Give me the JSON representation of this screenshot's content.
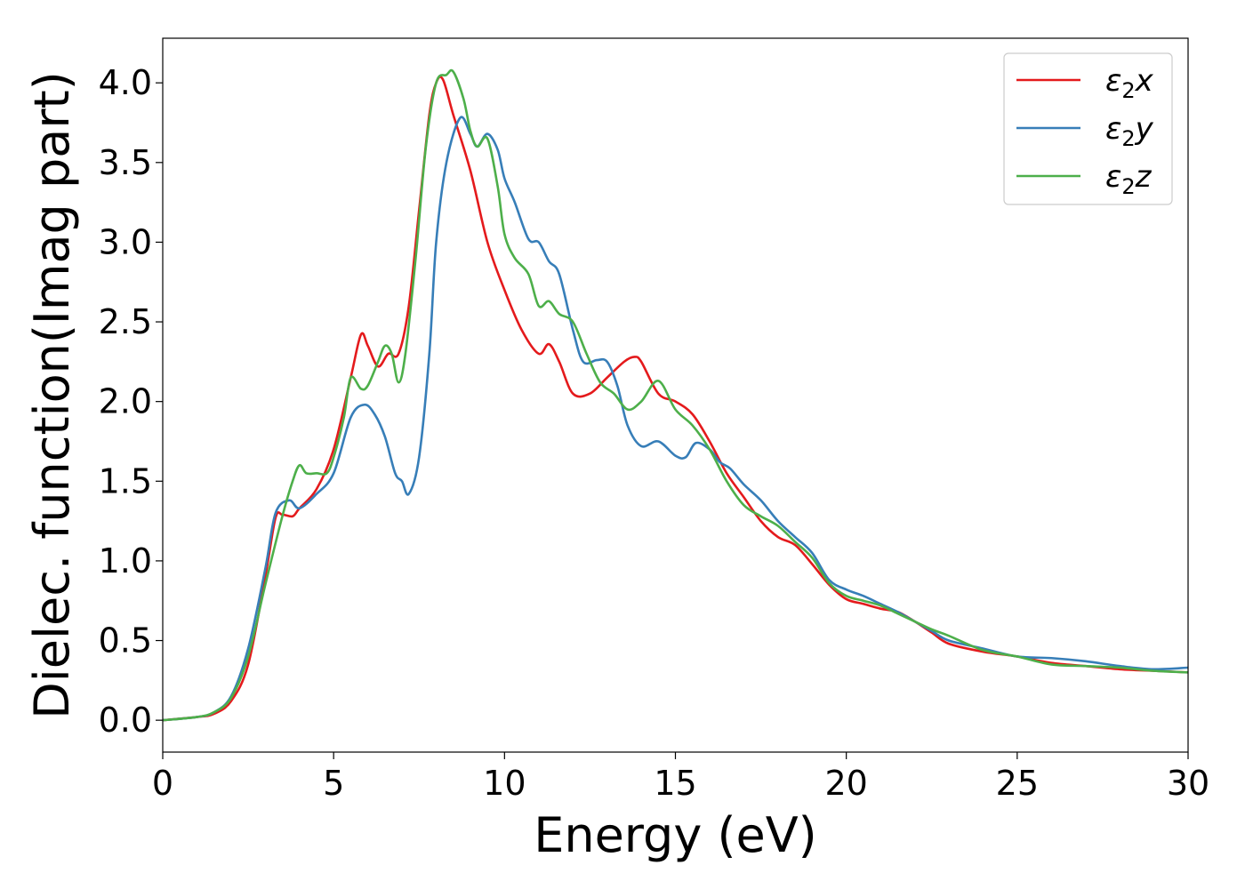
{
  "chart_data": {
    "type": "line",
    "title": "",
    "xlabel": "Energy (eV)",
    "ylabel": "Dielec. function(Imag part)",
    "xlim": [
      0,
      30
    ],
    "ylim": [
      -0.2,
      4.28
    ],
    "xticks": [
      0,
      5,
      10,
      15,
      20,
      25,
      30
    ],
    "yticks": [
      0.0,
      0.5,
      1.0,
      1.5,
      2.0,
      2.5,
      3.0,
      3.5,
      4.0
    ],
    "xtick_labels": [
      "0",
      "5",
      "10",
      "15",
      "20",
      "25",
      "30"
    ],
    "ytick_labels": [
      "0.0",
      "0.5",
      "1.0",
      "1.5",
      "2.0",
      "2.5",
      "3.0",
      "3.5",
      "4.0"
    ],
    "grid": false,
    "legend_position": "top-right",
    "series": [
      {
        "name": "ε2x",
        "legend_base": "ε",
        "legend_sub": "2",
        "legend_suffix": "x",
        "color": "#e41a1c",
        "x": [
          0,
          1,
          1.5,
          2.0,
          2.5,
          3.0,
          3.3,
          3.5,
          3.8,
          4.0,
          4.5,
          5.0,
          5.5,
          5.8,
          6.0,
          6.3,
          6.6,
          6.9,
          7.2,
          7.5,
          7.8,
          8.0,
          8.2,
          8.5,
          9.0,
          9.5,
          10.0,
          10.5,
          11.0,
          11.3,
          11.6,
          12.0,
          12.5,
          13.0,
          13.5,
          13.8,
          14.0,
          14.5,
          15.0,
          15.5,
          16.0,
          16.5,
          17.0,
          17.5,
          18.0,
          18.5,
          19.0,
          19.5,
          20.0,
          20.5,
          21.0,
          21.5,
          22.0,
          22.5,
          23.0,
          24.0,
          25.0,
          26.0,
          27.0,
          28.0,
          29.0,
          30.0
        ],
        "y": [
          0.0,
          0.02,
          0.04,
          0.12,
          0.35,
          0.9,
          1.27,
          1.29,
          1.28,
          1.33,
          1.45,
          1.7,
          2.15,
          2.42,
          2.35,
          2.22,
          2.3,
          2.3,
          2.6,
          3.2,
          3.8,
          4.0,
          4.02,
          3.8,
          3.45,
          3.0,
          2.7,
          2.45,
          2.3,
          2.36,
          2.25,
          2.05,
          2.05,
          2.15,
          2.25,
          2.28,
          2.25,
          2.05,
          2.0,
          1.92,
          1.75,
          1.55,
          1.4,
          1.25,
          1.15,
          1.1,
          0.98,
          0.85,
          0.76,
          0.73,
          0.7,
          0.68,
          0.62,
          0.55,
          0.48,
          0.43,
          0.4,
          0.36,
          0.34,
          0.32,
          0.31,
          0.3
        ]
      },
      {
        "name": "ε2y",
        "legend_base": "ε",
        "legend_sub": "2",
        "legend_suffix": "y",
        "color": "#377eb8",
        "x": [
          0,
          1,
          1.5,
          2.0,
          2.5,
          3.0,
          3.3,
          3.7,
          4.0,
          4.5,
          5.0,
          5.5,
          5.9,
          6.2,
          6.5,
          6.8,
          7.0,
          7.2,
          7.5,
          7.8,
          8.0,
          8.3,
          8.7,
          9.0,
          9.2,
          9.5,
          9.8,
          10.0,
          10.3,
          10.7,
          11.0,
          11.3,
          11.6,
          12.0,
          12.3,
          12.7,
          13.0,
          13.3,
          13.6,
          14.0,
          14.5,
          15.0,
          15.3,
          15.6,
          16.0,
          16.3,
          16.6,
          17.0,
          17.5,
          18.0,
          18.5,
          19.0,
          19.5,
          20.0,
          20.5,
          21.0,
          21.5,
          22.0,
          22.5,
          23.0,
          24.0,
          25.0,
          26.0,
          27.0,
          28.0,
          29.0,
          30.0
        ],
        "y": [
          0.0,
          0.02,
          0.05,
          0.15,
          0.45,
          0.95,
          1.3,
          1.38,
          1.33,
          1.42,
          1.55,
          1.9,
          1.98,
          1.92,
          1.78,
          1.55,
          1.5,
          1.42,
          1.65,
          2.3,
          3.0,
          3.5,
          3.78,
          3.68,
          3.6,
          3.68,
          3.58,
          3.4,
          3.25,
          3.02,
          3.0,
          2.88,
          2.8,
          2.45,
          2.25,
          2.26,
          2.25,
          2.1,
          1.85,
          1.72,
          1.75,
          1.66,
          1.65,
          1.74,
          1.7,
          1.62,
          1.58,
          1.48,
          1.38,
          1.25,
          1.15,
          1.05,
          0.88,
          0.82,
          0.78,
          0.73,
          0.68,
          0.62,
          0.56,
          0.5,
          0.45,
          0.4,
          0.39,
          0.37,
          0.34,
          0.32,
          0.33
        ]
      },
      {
        "name": "ε2z",
        "legend_base": "ε",
        "legend_sub": "2",
        "legend_suffix": "z",
        "color": "#4daf4a",
        "x": [
          0,
          1,
          1.5,
          2.0,
          2.5,
          3.0,
          3.5,
          3.8,
          4.0,
          4.2,
          4.5,
          4.8,
          5.0,
          5.3,
          5.5,
          5.8,
          6.0,
          6.3,
          6.5,
          6.7,
          6.9,
          7.1,
          7.4,
          7.7,
          8.0,
          8.3,
          8.5,
          8.8,
          9.0,
          9.2,
          9.5,
          9.8,
          10.0,
          10.3,
          10.7,
          11.0,
          11.3,
          11.6,
          12.0,
          12.4,
          12.8,
          13.2,
          13.6,
          14.0,
          14.5,
          15.0,
          15.5,
          16.0,
          16.5,
          17.0,
          17.5,
          18.0,
          18.5,
          19.0,
          19.5,
          20.0,
          20.5,
          21.0,
          21.5,
          22.0,
          22.5,
          23.0,
          24.0,
          25.0,
          26.0,
          27.0,
          28.0,
          29.0,
          30.0
        ],
        "y": [
          0.0,
          0.02,
          0.05,
          0.14,
          0.4,
          0.85,
          1.28,
          1.5,
          1.6,
          1.55,
          1.55,
          1.55,
          1.65,
          1.9,
          2.15,
          2.08,
          2.1,
          2.25,
          2.35,
          2.3,
          2.12,
          2.3,
          2.9,
          3.6,
          4.0,
          4.05,
          4.07,
          3.9,
          3.7,
          3.6,
          3.65,
          3.35,
          3.05,
          2.9,
          2.8,
          2.6,
          2.63,
          2.55,
          2.5,
          2.3,
          2.12,
          2.05,
          1.95,
          2.0,
          2.13,
          1.95,
          1.85,
          1.7,
          1.5,
          1.35,
          1.28,
          1.22,
          1.12,
          1.02,
          0.86,
          0.78,
          0.75,
          0.72,
          0.67,
          0.62,
          0.57,
          0.53,
          0.44,
          0.4,
          0.35,
          0.34,
          0.33,
          0.31,
          0.3
        ]
      }
    ]
  }
}
